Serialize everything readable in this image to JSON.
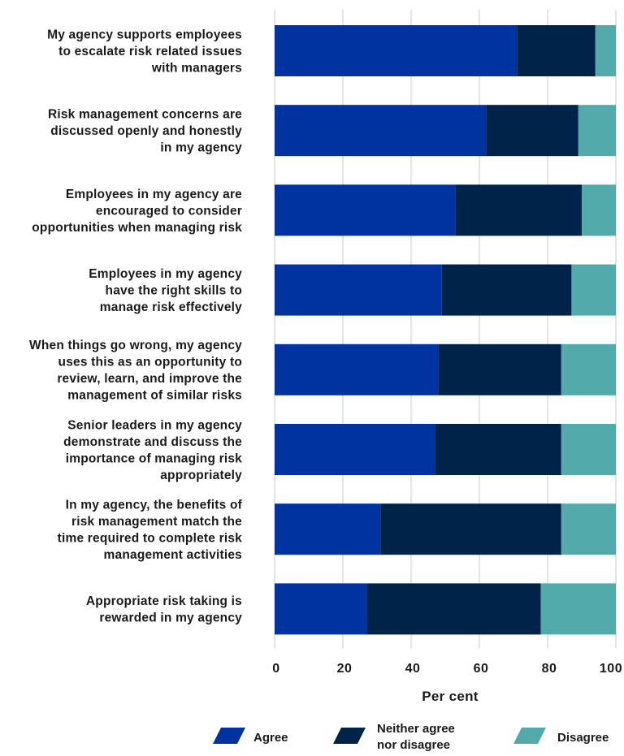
{
  "chart_data": {
    "type": "bar",
    "orientation": "horizontal",
    "stacked": true,
    "categories": [
      [
        "My agency supports employees",
        "to escalate risk related issues",
        "with managers"
      ],
      [
        "Risk management concerns are",
        "discussed openly and honestly",
        "in my agency"
      ],
      [
        "Employees in my agency are",
        "encouraged to consider",
        "opportunities when managing risk"
      ],
      [
        "Employees in my agency",
        "have the right skills to",
        "manage risk effectively"
      ],
      [
        "When things go wrong, my agency",
        "uses this as an opportunity to",
        "review, learn, and improve the",
        "management of similar risks"
      ],
      [
        "Senior leaders in my agency",
        "demonstrate and discuss the",
        "importance of managing risk",
        "appropriately"
      ],
      [
        "In my agency, the benefits of",
        "risk management match the",
        "time required to complete risk",
        "management activities"
      ],
      [
        "Appropriate risk taking is",
        "rewarded in my agency"
      ]
    ],
    "series": [
      {
        "name": "Agree",
        "color": "#0033a0",
        "values": [
          71,
          62,
          53,
          49,
          48,
          47,
          31,
          27
        ]
      },
      {
        "name": "Neither agree nor disagree",
        "legend_lines": [
          "Neither agree",
          "nor disagree"
        ],
        "color": "#00234a",
        "values": [
          23,
          27,
          37,
          38,
          36,
          37,
          53,
          51
        ]
      },
      {
        "name": "Disagree",
        "color": "#52aaaa",
        "values": [
          6,
          11,
          10,
          13,
          16,
          16,
          16,
          22
        ]
      }
    ],
    "xlabel": "Per cent",
    "ylabel": "",
    "xlim": [
      0,
      100
    ],
    "xticks": [
      0,
      20,
      40,
      60,
      80,
      100
    ],
    "grid": true,
    "legend_position": "bottom"
  }
}
